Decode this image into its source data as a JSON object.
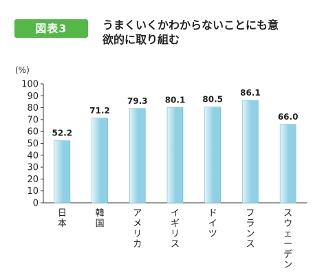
{
  "header": {
    "badge": "図表3",
    "title_line1": "うまくいくかわからないことにも意",
    "title_line2": "欲的に取り組む"
  },
  "colors": {
    "badge": "#54b848",
    "bar_light": "#e3f4f9",
    "bar_dark": "#8fd0e4",
    "bar_edge": "#6dbcd6",
    "axis": "#333333"
  },
  "chart_data": {
    "type": "bar",
    "title": "うまくいくかわからないことにも意欲的に取り組む",
    "ylabel": "(%)",
    "xlabel": "",
    "ylim": [
      0,
      100
    ],
    "yticks": [
      0,
      10,
      20,
      30,
      40,
      50,
      60,
      70,
      80,
      90,
      100
    ],
    "categories": [
      "日本",
      "韓国",
      "アメリカ",
      "イギリス",
      "ドイツ",
      "フランス",
      "スウェーデン"
    ],
    "values": [
      52.2,
      71.2,
      79.3,
      80.1,
      80.5,
      86.1,
      66.0
    ],
    "value_labels": [
      "52.2",
      "71.2",
      "79.3",
      "80.1",
      "80.5",
      "86.1",
      "66.0"
    ],
    "grid": false,
    "legend": "none"
  }
}
